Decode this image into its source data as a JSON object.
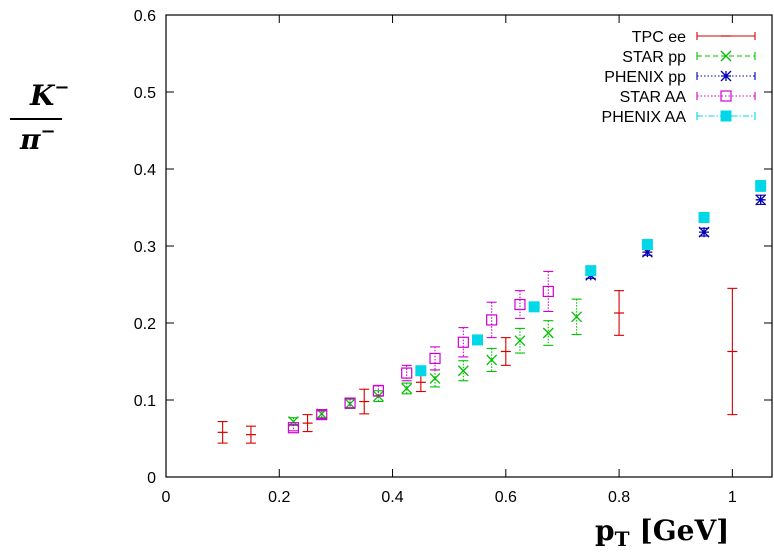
{
  "chart_data": {
    "type": "scatter",
    "title": "",
    "xlabel": {
      "main": "p",
      "sub": "T",
      "unit": "[GeV]"
    },
    "ylabel": {
      "numerator": "K",
      "numerator_sup": "−",
      "denominator": "π",
      "denominator_sup": "−"
    },
    "xlim": [
      0,
      1.07
    ],
    "ylim": [
      0,
      0.6
    ],
    "x_ticks": [
      0,
      0.2,
      0.4,
      0.6,
      0.8,
      1
    ],
    "x_tick_labels": [
      "0",
      "0.2",
      "0.4",
      "0.6",
      "0.8",
      "1"
    ],
    "y_ticks": [
      0,
      0.1,
      0.2,
      0.3,
      0.4,
      0.5,
      0.6
    ],
    "y_tick_labels": [
      "0",
      "0.1",
      "0.2",
      "0.3",
      "0.4",
      "0.5",
      "0.6"
    ],
    "grid": false,
    "legend_position": "top-right",
    "series": [
      {
        "name": "TPC ee",
        "color": "#d40000",
        "marker": "plus",
        "line_style": "solid",
        "points": [
          {
            "x": 0.1,
            "y": 0.058,
            "err": 0.014
          },
          {
            "x": 0.15,
            "y": 0.055,
            "err": 0.011
          },
          {
            "x": 0.25,
            "y": 0.07,
            "err": 0.011
          },
          {
            "x": 0.35,
            "y": 0.098,
            "err": 0.016
          },
          {
            "x": 0.45,
            "y": 0.123,
            "err": 0.012
          },
          {
            "x": 0.6,
            "y": 0.163,
            "err": 0.018
          },
          {
            "x": 0.8,
            "y": 0.213,
            "err": 0.029
          },
          {
            "x": 1.0,
            "y": 0.163,
            "err": 0.082
          }
        ]
      },
      {
        "name": "STAR pp",
        "color": "#00c000",
        "marker": "x",
        "line_style": "dashed",
        "points": [
          {
            "x": 0.225,
            "y": 0.072,
            "err": 0.005
          },
          {
            "x": 0.275,
            "y": 0.082,
            "err": 0.005
          },
          {
            "x": 0.325,
            "y": 0.095,
            "err": 0.006
          },
          {
            "x": 0.375,
            "y": 0.105,
            "err": 0.007
          },
          {
            "x": 0.425,
            "y": 0.115,
            "err": 0.007
          },
          {
            "x": 0.475,
            "y": 0.128,
            "err": 0.011
          },
          {
            "x": 0.525,
            "y": 0.138,
            "err": 0.013
          },
          {
            "x": 0.575,
            "y": 0.152,
            "err": 0.015
          },
          {
            "x": 0.625,
            "y": 0.177,
            "err": 0.016
          },
          {
            "x": 0.675,
            "y": 0.187,
            "err": 0.016
          },
          {
            "x": 0.725,
            "y": 0.208,
            "err": 0.023
          }
        ]
      },
      {
        "name": "PHENIX pp",
        "color": "#0000b0",
        "marker": "star",
        "line_style": "dotted",
        "points": [
          {
            "x": 0.75,
            "y": 0.262,
            "err": 0.004
          },
          {
            "x": 0.85,
            "y": 0.292,
            "err": 0.004
          },
          {
            "x": 0.95,
            "y": 0.318,
            "err": 0.005
          },
          {
            "x": 1.05,
            "y": 0.36,
            "err": 0.006
          }
        ]
      },
      {
        "name": "STAR AA",
        "color": "#d000d0",
        "marker": "open-square",
        "line_style": "dotted",
        "points": [
          {
            "x": 0.225,
            "y": 0.064,
            "err": 0.004
          },
          {
            "x": 0.275,
            "y": 0.081,
            "err": 0.005
          },
          {
            "x": 0.325,
            "y": 0.096,
            "err": 0.006
          },
          {
            "x": 0.375,
            "y": 0.112,
            "err": 0.007
          },
          {
            "x": 0.425,
            "y": 0.135,
            "err": 0.01
          },
          {
            "x": 0.475,
            "y": 0.154,
            "err": 0.015
          },
          {
            "x": 0.525,
            "y": 0.175,
            "err": 0.019
          },
          {
            "x": 0.575,
            "y": 0.204,
            "err": 0.023
          },
          {
            "x": 0.625,
            "y": 0.224,
            "err": 0.018
          },
          {
            "x": 0.675,
            "y": 0.241,
            "err": 0.026
          }
        ]
      },
      {
        "name": "PHENIX AA",
        "color": "#00d8e8",
        "marker": "filled-square",
        "line_style": "dashdot",
        "points": [
          {
            "x": 0.45,
            "y": 0.138,
            "err": 0.004
          },
          {
            "x": 0.55,
            "y": 0.178,
            "err": 0.004
          },
          {
            "x": 0.65,
            "y": 0.221,
            "err": 0.004
          },
          {
            "x": 0.75,
            "y": 0.268,
            "err": 0.005
          },
          {
            "x": 0.85,
            "y": 0.302,
            "err": 0.005
          },
          {
            "x": 0.95,
            "y": 0.337,
            "err": 0.006
          },
          {
            "x": 1.05,
            "y": 0.378,
            "err": 0.007
          }
        ]
      }
    ]
  }
}
